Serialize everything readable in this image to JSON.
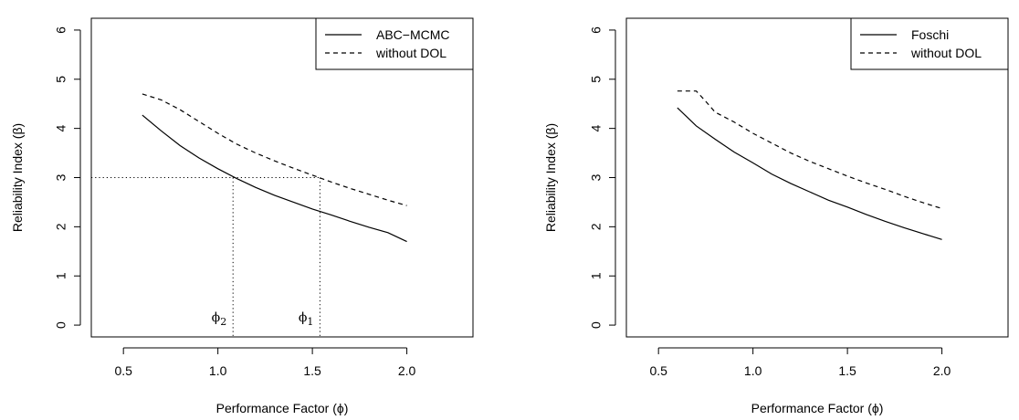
{
  "chart_data": [
    {
      "type": "line",
      "xlabel": "Performance Factor (ϕ)",
      "ylabel": "Reliability Index (β)",
      "xlim": [
        0.33,
        2.35
      ],
      "ylim": [
        -0.24,
        6.24
      ],
      "xticks": [
        "0.5",
        "1.0",
        "1.5",
        "2.0"
      ],
      "yticks": [
        "0",
        "1",
        "2",
        "3",
        "4",
        "5",
        "6"
      ],
      "legend_position": "top-right",
      "series": [
        {
          "name": "ABC−MCMC",
          "style": "solid",
          "x": [
            0.6,
            0.7,
            0.8,
            0.9,
            1.0,
            1.1,
            1.2,
            1.3,
            1.4,
            1.5,
            1.6,
            1.7,
            1.8,
            1.9,
            2.0
          ],
          "y": [
            4.27,
            3.95,
            3.65,
            3.4,
            3.18,
            2.98,
            2.8,
            2.64,
            2.5,
            2.36,
            2.24,
            2.11,
            1.99,
            1.88,
            1.7
          ]
        },
        {
          "name": "without DOL",
          "style": "dashed",
          "x": [
            0.6,
            0.7,
            0.8,
            0.9,
            1.0,
            1.1,
            1.2,
            1.3,
            1.4,
            1.5,
            1.6,
            1.7,
            1.8,
            1.9,
            2.0
          ],
          "y": [
            4.7,
            4.58,
            4.38,
            4.14,
            3.9,
            3.68,
            3.5,
            3.34,
            3.19,
            3.05,
            2.91,
            2.78,
            2.66,
            2.54,
            2.43
          ]
        }
      ],
      "reference_lines": {
        "y": 3.0,
        "x": [
          1.08,
          1.54
        ]
      },
      "annotations": [
        {
          "base": "ϕ",
          "sub": "2",
          "x": 1.08
        },
        {
          "base": "ϕ",
          "sub": "1",
          "x": 1.54
        }
      ]
    },
    {
      "type": "line",
      "xlabel": "Performance Factor (ϕ)",
      "ylabel": "Reliability Index (β)",
      "xlim": [
        0.33,
        2.35
      ],
      "ylim": [
        -0.24,
        6.24
      ],
      "xticks": [
        "0.5",
        "1.0",
        "1.5",
        "2.0"
      ],
      "yticks": [
        "0",
        "1",
        "2",
        "3",
        "4",
        "5",
        "6"
      ],
      "legend_position": "top-right",
      "series": [
        {
          "name": "Foschi",
          "style": "solid",
          "x": [
            0.6,
            0.7,
            0.8,
            0.9,
            1.0,
            1.1,
            1.2,
            1.3,
            1.4,
            1.5,
            1.6,
            1.7,
            1.8,
            1.9,
            2.0
          ],
          "y": [
            4.42,
            4.05,
            3.78,
            3.52,
            3.3,
            3.07,
            2.88,
            2.71,
            2.54,
            2.4,
            2.25,
            2.11,
            1.98,
            1.86,
            1.74
          ]
        },
        {
          "name": "without DOL",
          "style": "dashed",
          "x": [
            0.6,
            0.7,
            0.75,
            0.8,
            0.9,
            1.0,
            1.1,
            1.2,
            1.3,
            1.4,
            1.5,
            1.6,
            1.7,
            1.8,
            1.9,
            2.0
          ],
          "y": [
            4.76,
            4.76,
            4.55,
            4.33,
            4.13,
            3.9,
            3.7,
            3.5,
            3.33,
            3.18,
            3.03,
            2.89,
            2.76,
            2.62,
            2.49,
            2.37
          ]
        }
      ]
    }
  ]
}
